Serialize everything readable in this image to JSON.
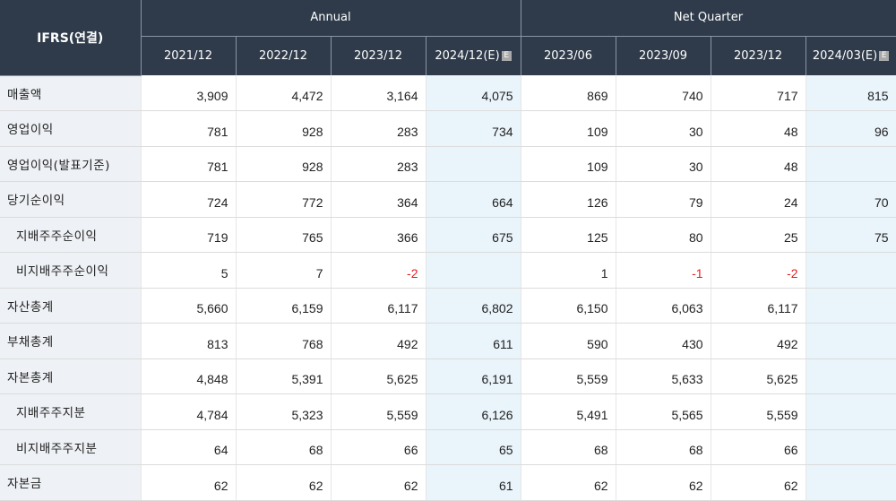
{
  "header": {
    "corner": "IFRS(연결)",
    "group_annual": "Annual",
    "group_quarter": "Net Quarter",
    "estimate_badge": "E",
    "periods": [
      {
        "label": "2021/12",
        "est": false
      },
      {
        "label": "2022/12",
        "est": false
      },
      {
        "label": "2023/12",
        "est": false
      },
      {
        "label": "2024/12(E)",
        "est": true
      },
      {
        "label": "2023/06",
        "est": false
      },
      {
        "label": "2023/09",
        "est": false
      },
      {
        "label": "2023/12",
        "est": false
      },
      {
        "label": "2024/03(E)",
        "est": true
      }
    ]
  },
  "rows": [
    {
      "label": "매출액",
      "sub": false,
      "values": [
        "3,909",
        "4,472",
        "3,164",
        "4,075",
        "869",
        "740",
        "717",
        "815"
      ]
    },
    {
      "label": "영업이익",
      "sub": false,
      "values": [
        "781",
        "928",
        "283",
        "734",
        "109",
        "30",
        "48",
        "96"
      ]
    },
    {
      "label": "영업이익(발표기준)",
      "sub": false,
      "values": [
        "781",
        "928",
        "283",
        "",
        "109",
        "30",
        "48",
        ""
      ]
    },
    {
      "label": "당기순이익",
      "sub": false,
      "values": [
        "724",
        "772",
        "364",
        "664",
        "126",
        "79",
        "24",
        "70"
      ]
    },
    {
      "label": "지배주주순이익",
      "sub": true,
      "values": [
        "719",
        "765",
        "366",
        "675",
        "125",
        "80",
        "25",
        "75"
      ]
    },
    {
      "label": "비지배주주순이익",
      "sub": true,
      "values": [
        "5",
        "7",
        "-2",
        "",
        "1",
        "-1",
        "-2",
        ""
      ]
    },
    {
      "label": "자산총계",
      "sub": false,
      "values": [
        "5,660",
        "6,159",
        "6,117",
        "6,802",
        "6,150",
        "6,063",
        "6,117",
        ""
      ]
    },
    {
      "label": "부채총계",
      "sub": false,
      "values": [
        "813",
        "768",
        "492",
        "611",
        "590",
        "430",
        "492",
        ""
      ]
    },
    {
      "label": "자본총계",
      "sub": false,
      "values": [
        "4,848",
        "5,391",
        "5,625",
        "6,191",
        "5,559",
        "5,633",
        "5,625",
        ""
      ]
    },
    {
      "label": "지배주주지분",
      "sub": true,
      "values": [
        "4,784",
        "5,323",
        "5,559",
        "6,126",
        "5,491",
        "5,565",
        "5,559",
        ""
      ]
    },
    {
      "label": "비지배주주지분",
      "sub": true,
      "values": [
        "64",
        "68",
        "66",
        "65",
        "68",
        "68",
        "66",
        ""
      ]
    },
    {
      "label": "자본금",
      "sub": false,
      "values": [
        "62",
        "62",
        "62",
        "61",
        "62",
        "62",
        "62",
        ""
      ]
    }
  ],
  "colors": {
    "header_bg": "#2f3b4a",
    "label_bg": "#eef1f5",
    "estimate_bg": "#e9f4fb",
    "negative": "#e02020"
  }
}
